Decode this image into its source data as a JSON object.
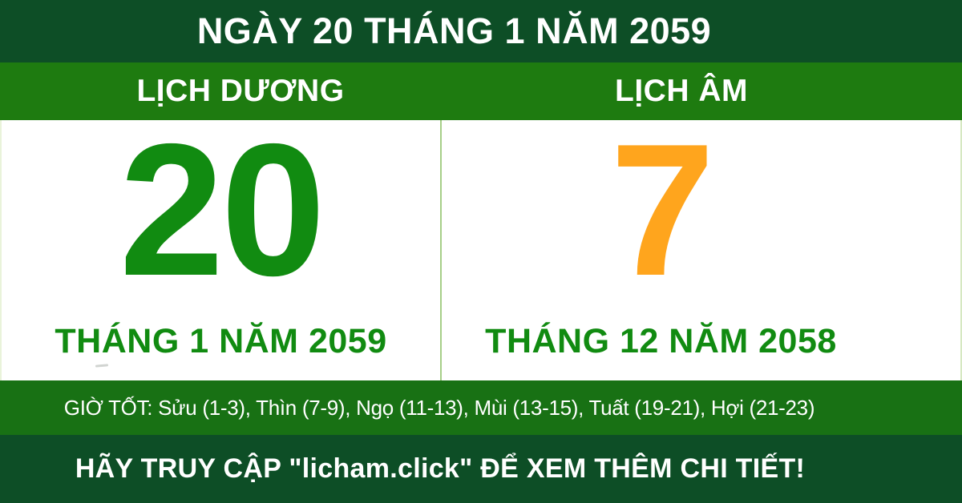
{
  "banner": {
    "title": "NGÀY 20 THÁNG 1 NĂM 2059"
  },
  "columns": {
    "solar": {
      "header": "LỊCH DƯƠNG",
      "day": "20",
      "month_year": "THÁNG 1 NĂM 2059"
    },
    "lunar": {
      "header": "LỊCH ÂM",
      "day": "7",
      "month_year": "THÁNG 12 NĂM 2058"
    }
  },
  "good_hours": {
    "text": "GIỜ TỐT: Sửu (1-3), Thìn (7-9), Ngọ (11-13), Mùi (13-15), Tuất (19-21), Hợi (21-23)"
  },
  "footer": {
    "cta": "HÃY TRUY CẬP \"licham.click\" ĐỂ XEM THÊM CHI TIẾT!"
  },
  "colors": {
    "dark_green": "#0d4e26",
    "header_green": "#1e7b10",
    "hours_green": "#187114",
    "solar_day_green": "#118b11",
    "lunar_day_orange": "#ffa51d",
    "divider_green": "#a6cf87",
    "text_white": "#ffffff"
  }
}
